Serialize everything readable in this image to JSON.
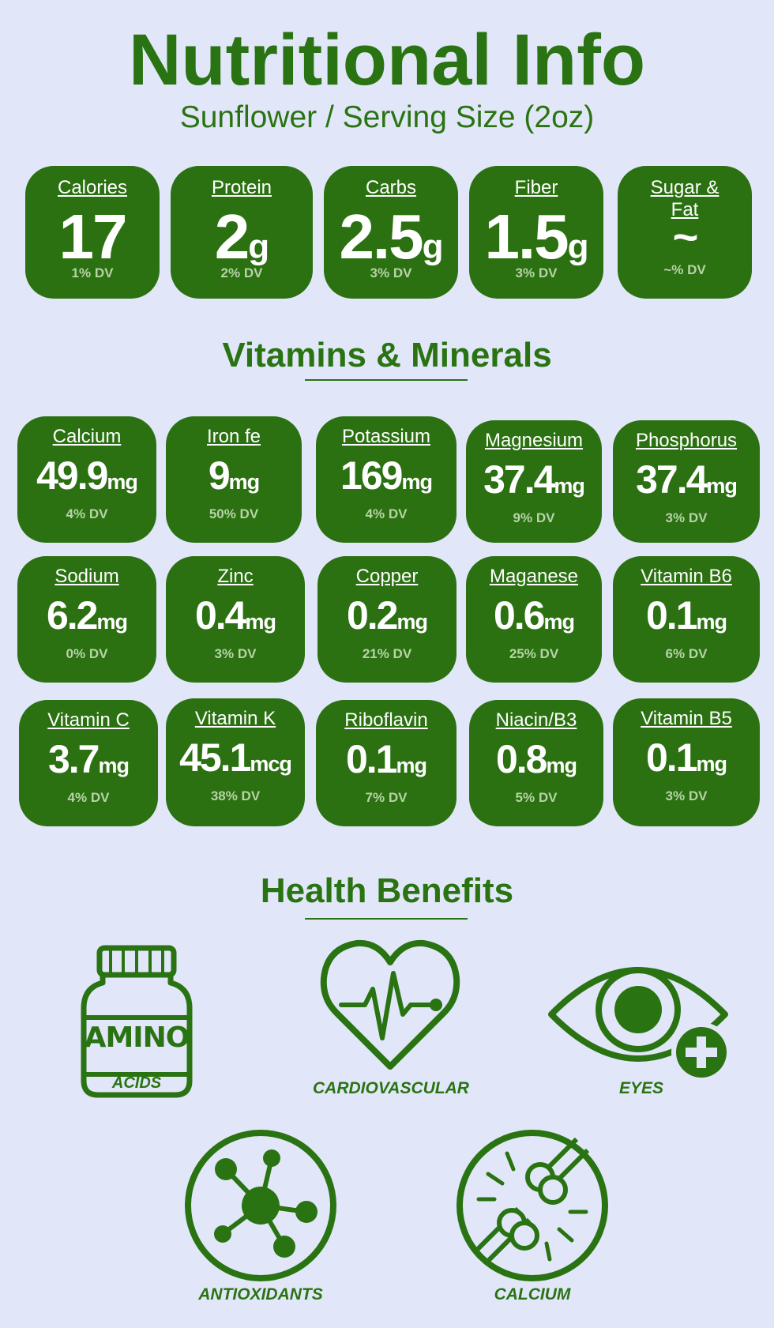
{
  "header": {
    "title": "Nutritional Info",
    "subtitle": "Sunflower / Serving Size (2oz)"
  },
  "macros": [
    {
      "label": "Calories",
      "value": "17",
      "unit": "",
      "dv": "1% DV"
    },
    {
      "label": "Protein",
      "value": "2",
      "unit": "g",
      "dv": "2% DV"
    },
    {
      "label": "Carbs",
      "value": "2.5",
      "unit": "g",
      "dv": "3% DV"
    },
    {
      "label": "Fiber",
      "value": "1.5",
      "unit": "g",
      "dv": "3% DV"
    },
    {
      "label_line1": "Sugar &",
      "label_line2": "Fat",
      "value": "~",
      "unit": "",
      "dv": "~% DV"
    }
  ],
  "vitamins_section": {
    "title": "Vitamins & Minerals"
  },
  "vitamins": [
    {
      "label": "Calcium",
      "value": "49.9",
      "unit": "mg",
      "dv": "4% DV"
    },
    {
      "label": "Iron fe",
      "value": "9",
      "unit": "mg",
      "dv": "50% DV"
    },
    {
      "label": "Potassium",
      "value": "169",
      "unit": "mg",
      "dv": "4% DV"
    },
    {
      "label": "Magnesium",
      "value": "37.4",
      "unit": "mg",
      "dv": "9% DV"
    },
    {
      "label": "Phosphorus",
      "value": "37.4",
      "unit": "mg",
      "dv": "3% DV"
    },
    {
      "label": "Sodium",
      "value": "6.2",
      "unit": "mg",
      "dv": "0% DV"
    },
    {
      "label": "Zinc",
      "value": "0.4",
      "unit": "mg",
      "dv": "3% DV"
    },
    {
      "label": "Copper",
      "value": "0.2",
      "unit": "mg",
      "dv": "21% DV"
    },
    {
      "label": "Maganese",
      "value": "0.6",
      "unit": "mg",
      "dv": "25% DV"
    },
    {
      "label": "Vitamin B6",
      "value": "0.1",
      "unit": "mg",
      "dv": "6% DV"
    },
    {
      "label": "Vitamin C",
      "value": "3.7",
      "unit": "mg",
      "dv": "4% DV"
    },
    {
      "label": "Vitamin K",
      "value": "45.1",
      "unit": "mcg",
      "dv": "38% DV"
    },
    {
      "label": "Riboflavin",
      "value": "0.1",
      "unit": "mg",
      "dv": "7% DV"
    },
    {
      "label": "Niacin/B3",
      "value": "0.8",
      "unit": "mg",
      "dv": "5% DV"
    },
    {
      "label": "Vitamin B5",
      "value": "0.1",
      "unit": "mg",
      "dv": "3% DV"
    }
  ],
  "benefits_section": {
    "title": "Health Benefits"
  },
  "benefits": {
    "amino_bottle_text": "AMINO",
    "amino_label": "ACIDS",
    "cardio_label": "CARDIOVASCULAR",
    "eyes_label": "EYES",
    "antioxidants_label": "ANTIOXIDANTS",
    "calcium_label": "CALCIUM",
    "icons": [
      "amino-bottle-icon",
      "heart-pulse-icon",
      "eye-plus-icon",
      "molecule-icon",
      "bone-joint-icon"
    ]
  },
  "colors": {
    "accent": "#2a7312",
    "card": "#2b7111",
    "background": "#e1e7f8",
    "dv_text": "#b8d3a8"
  }
}
